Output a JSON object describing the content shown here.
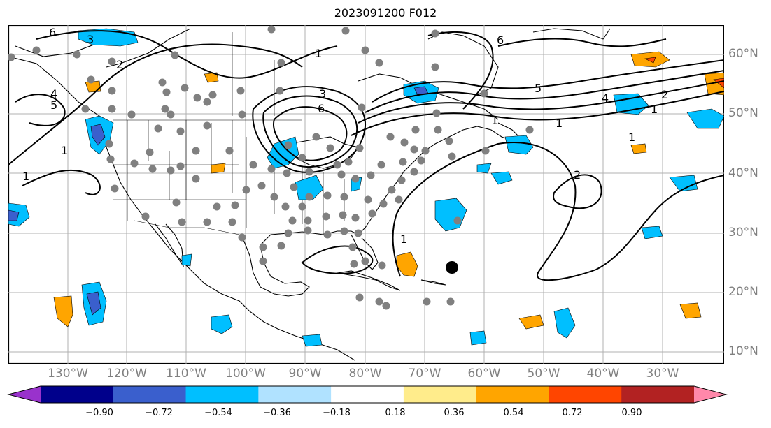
{
  "title": "2023091200 F012",
  "latitude_labels": [
    "60°N",
    "50°N",
    "40°N",
    "30°N",
    "20°N",
    "10°N"
  ],
  "longitude_labels": [
    "130°W",
    "120°W",
    "110°W",
    "100°W",
    "90°W",
    "80°W",
    "70°W",
    "60°W",
    "50°W",
    "40°W",
    "30°W"
  ],
  "contour_labels": [
    "6",
    "3",
    "2",
    "1",
    "4",
    "5",
    "1",
    "3",
    "6",
    "1",
    "4",
    "5",
    "2",
    "1",
    "1",
    "1",
    "1",
    "6",
    "2",
    "1"
  ],
  "colorbar": {
    "ticks": [
      "−0.90",
      "−0.72",
      "−0.54",
      "−0.36",
      "−0.18",
      "0.18",
      "0.36",
      "0.54",
      "0.72",
      "0.90"
    ],
    "colors": [
      "#9932cc",
      "#00008b",
      "#3a5fcd",
      "#00bfff",
      "#b0e2ff",
      "#ffffff",
      "#ffec8b",
      "#ffa500",
      "#ff4500",
      "#b22222",
      "#ff88aa"
    ]
  },
  "colors": {
    "neg": "#00bfff",
    "neg_strong": "#3a5fcd",
    "neg_darkest": "#9932cc",
    "pos": "#ffa500",
    "pos_strong": "#ff4500",
    "stations": "#808080",
    "marker": "#000000",
    "grid": "#b0b0b0"
  }
}
